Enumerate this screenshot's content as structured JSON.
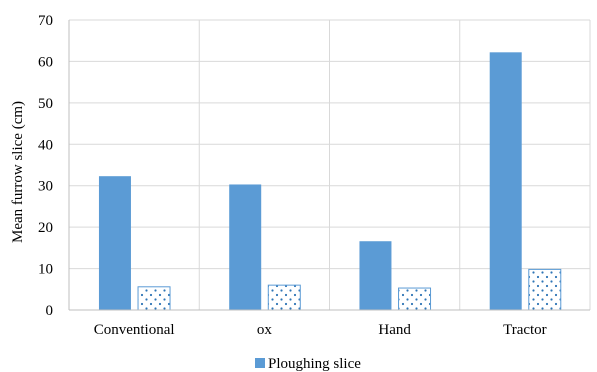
{
  "chart_data": {
    "type": "bar",
    "title": "",
    "xlabel": "",
    "ylabel": "Mean furrow slice (cm)",
    "ylim": [
      0,
      70
    ],
    "yticks": [
      0,
      10,
      20,
      30,
      40,
      50,
      60,
      70
    ],
    "grid": true,
    "legend_position": "bottom",
    "categories": [
      "Conventional",
      "ox",
      "Hand",
      "Tractor"
    ],
    "series": [
      {
        "name": "Ploughing slice",
        "values": [
          32.3,
          30.3,
          16.6,
          62.2
        ],
        "color": "#5b9bd5",
        "pattern": "solid"
      },
      {
        "name": "",
        "values": [
          5.6,
          6.0,
          5.3,
          9.8
        ],
        "color": "#5b9bd5",
        "pattern": "dotted"
      }
    ]
  }
}
